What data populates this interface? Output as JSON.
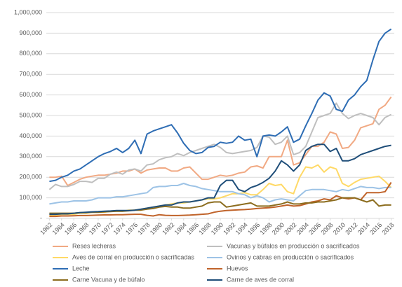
{
  "chart_data": {
    "type": "line",
    "x": [
      1962,
      1963,
      1964,
      1965,
      1966,
      1967,
      1968,
      1969,
      1970,
      1971,
      1972,
      1973,
      1974,
      1975,
      1976,
      1977,
      1978,
      1979,
      1980,
      1981,
      1982,
      1983,
      1984,
      1985,
      1986,
      1987,
      1988,
      1989,
      1990,
      1991,
      1992,
      1993,
      1994,
      1995,
      1996,
      1997,
      1998,
      1999,
      2000,
      2001,
      2002,
      2003,
      2004,
      2005,
      2006,
      2007,
      2008,
      2009,
      2010,
      2011,
      2012,
      2013,
      2014,
      2015,
      2016,
      2017,
      2018
    ],
    "xlim": [
      1961.5,
      2018.5
    ],
    "xticks": [
      1962,
      1964,
      1966,
      1968,
      1970,
      1972,
      1974,
      1976,
      1978,
      1980,
      1982,
      1984,
      1986,
      1988,
      1990,
      1992,
      1994,
      1996,
      1998,
      2000,
      2002,
      2004,
      2006,
      2008,
      2010,
      2012,
      2014,
      2016,
      2018
    ],
    "ylim": [
      0,
      1000000
    ],
    "yticks": [
      {
        "value": 0,
        "label": "-"
      },
      {
        "value": 100000,
        "label": "100,000"
      },
      {
        "value": 200000,
        "label": "200,000"
      },
      {
        "value": 300000,
        "label": "300,000"
      },
      {
        "value": 400000,
        "label": "400,000"
      },
      {
        "value": 500000,
        "label": "500,000"
      },
      {
        "value": 600000,
        "label": "600,000"
      },
      {
        "value": 700000,
        "label": "700,000"
      },
      {
        "value": 800000,
        "label": "800,000"
      },
      {
        "value": 900000,
        "label": "900,000"
      },
      {
        "value": 1000000,
        "label": "1,000,000"
      }
    ],
    "grid": true,
    "legend": "bottom",
    "series": [
      {
        "name": "Reses lecheras",
        "color": "#f1a983",
        "values": [
          200000,
          200000,
          205000,
          160000,
          175000,
          190000,
          200000,
          205000,
          210000,
          210000,
          215000,
          220000,
          230000,
          230000,
          240000,
          220000,
          235000,
          240000,
          245000,
          245000,
          230000,
          230000,
          245000,
          250000,
          220000,
          190000,
          190000,
          200000,
          210000,
          205000,
          210000,
          220000,
          225000,
          250000,
          255000,
          245000,
          300000,
          300000,
          300000,
          380000,
          260000,
          270000,
          310000,
          350000,
          350000,
          370000,
          420000,
          410000,
          340000,
          345000,
          380000,
          440000,
          450000,
          460000,
          530000,
          550000,
          590000
        ]
      },
      {
        "name": "Vacunas y búfalos en producción o sacrificados",
        "color": "#bfbfbf",
        "values": [
          140000,
          165000,
          155000,
          155000,
          165000,
          180000,
          180000,
          175000,
          195000,
          195000,
          215000,
          225000,
          215000,
          235000,
          240000,
          230000,
          260000,
          265000,
          285000,
          295000,
          300000,
          315000,
          305000,
          320000,
          330000,
          340000,
          350000,
          360000,
          345000,
          320000,
          315000,
          320000,
          325000,
          330000,
          345000,
          400000,
          395000,
          360000,
          370000,
          400000,
          310000,
          320000,
          350000,
          420000,
          490000,
          500000,
          510000,
          560000,
          510000,
          485000,
          500000,
          510000,
          500000,
          490000,
          455000,
          490000,
          505000
        ]
      },
      {
        "name": "Aves de corral en producción o sacrificadas",
        "color": "#ffd966",
        "values": [
          15000,
          15000,
          20000,
          20000,
          20000,
          25000,
          25000,
          30000,
          30000,
          30000,
          35000,
          35000,
          35000,
          40000,
          40000,
          45000,
          50000,
          55000,
          60000,
          65000,
          70000,
          75000,
          75000,
          80000,
          85000,
          90000,
          95000,
          95000,
          100000,
          110000,
          120000,
          120000,
          125000,
          115000,
          115000,
          140000,
          170000,
          160000,
          165000,
          130000,
          120000,
          200000,
          250000,
          245000,
          260000,
          225000,
          250000,
          240000,
          170000,
          155000,
          175000,
          190000,
          195000,
          200000,
          205000,
          180000,
          150000
        ]
      },
      {
        "name": "Ovinos y cabras en producción o sacrificados",
        "color": "#9dc3e6",
        "values": [
          70000,
          75000,
          80000,
          80000,
          85000,
          85000,
          85000,
          90000,
          100000,
          100000,
          100000,
          105000,
          105000,
          110000,
          115000,
          120000,
          125000,
          150000,
          155000,
          155000,
          160000,
          160000,
          170000,
          160000,
          155000,
          145000,
          140000,
          135000,
          130000,
          130000,
          130000,
          120000,
          115000,
          100000,
          110000,
          100000,
          80000,
          90000,
          95000,
          90000,
          85000,
          110000,
          135000,
          140000,
          140000,
          140000,
          135000,
          130000,
          140000,
          135000,
          145000,
          155000,
          150000,
          150000,
          145000,
          150000,
          150000
        ]
      },
      {
        "name": "Leche",
        "color": "#2e6db4",
        "values": [
          180000,
          185000,
          200000,
          210000,
          230000,
          240000,
          260000,
          280000,
          300000,
          315000,
          325000,
          340000,
          320000,
          340000,
          380000,
          315000,
          410000,
          425000,
          435000,
          445000,
          455000,
          415000,
          365000,
          330000,
          315000,
          320000,
          345000,
          350000,
          370000,
          365000,
          370000,
          400000,
          380000,
          385000,
          300000,
          400000,
          405000,
          400000,
          420000,
          445000,
          370000,
          385000,
          450000,
          510000,
          575000,
          610000,
          595000,
          530000,
          520000,
          575000,
          600000,
          640000,
          670000,
          770000,
          860000,
          900000,
          920000
        ]
      },
      {
        "name": "Huevos",
        "color": "#c0632a",
        "values": [
          10000,
          10000,
          12000,
          12000,
          13000,
          14000,
          14000,
          15000,
          16000,
          17000,
          17000,
          18000,
          18000,
          19000,
          20000,
          20000,
          15000,
          12000,
          18000,
          15000,
          14000,
          14000,
          15000,
          16000,
          18000,
          20000,
          22000,
          30000,
          35000,
          38000,
          40000,
          42000,
          43000,
          45000,
          48000,
          50000,
          52000,
          55000,
          60000,
          65000,
          60000,
          62000,
          70000,
          80000,
          85000,
          95000,
          90000,
          110000,
          100000,
          95000,
          100000,
          90000,
          125000,
          125000,
          125000,
          130000,
          175000
        ]
      },
      {
        "name": "Carne Vacuna y de búfalo",
        "color": "#8c6d1f",
        "values": [
          25000,
          25000,
          25000,
          25000,
          25000,
          28000,
          28000,
          30000,
          30000,
          32000,
          33000,
          35000,
          35000,
          37000,
          40000,
          40000,
          45000,
          48000,
          55000,
          58000,
          55000,
          55000,
          50000,
          50000,
          55000,
          60000,
          75000,
          80000,
          80000,
          55000,
          60000,
          65000,
          70000,
          75000,
          60000,
          60000,
          60000,
          65000,
          70000,
          80000,
          70000,
          70000,
          75000,
          75000,
          80000,
          80000,
          85000,
          90000,
          100000,
          100000,
          100000,
          90000,
          80000,
          90000,
          60000,
          65000,
          65000
        ]
      },
      {
        "name": "Carne de aves de corral",
        "color": "#1f4e79",
        "values": [
          20000,
          20000,
          22000,
          22000,
          25000,
          28000,
          30000,
          32000,
          33000,
          35000,
          36000,
          38000,
          38000,
          38000,
          40000,
          45000,
          50000,
          55000,
          60000,
          65000,
          65000,
          75000,
          80000,
          80000,
          85000,
          90000,
          100000,
          100000,
          160000,
          185000,
          185000,
          140000,
          130000,
          150000,
          160000,
          175000,
          195000,
          230000,
          280000,
          260000,
          230000,
          260000,
          330000,
          350000,
          360000,
          360000,
          325000,
          340000,
          280000,
          280000,
          290000,
          310000,
          320000,
          330000,
          340000,
          350000,
          355000
        ]
      }
    ]
  }
}
